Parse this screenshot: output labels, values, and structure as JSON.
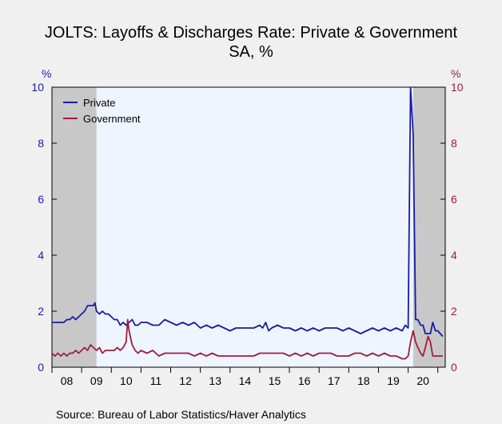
{
  "chart_data": {
    "type": "line",
    "title": "JOLTS: Layoffs & Discharges Rate: Private & Government",
    "subtitle": "SA, %",
    "y_unit_left": "%",
    "y_unit_right": "%",
    "ylim": [
      0,
      10
    ],
    "yticks": [
      "0",
      "2",
      "4",
      "6",
      "8",
      "10"
    ],
    "xlim": [
      2008.0,
      2021.25
    ],
    "xtick_labels": [
      "08",
      "09",
      "10",
      "11",
      "12",
      "13",
      "14",
      "15",
      "16",
      "17",
      "18",
      "19",
      "20"
    ],
    "recessions": [
      [
        2008.0,
        2009.5
      ],
      [
        2020.17,
        2021.25
      ]
    ],
    "legend": "top-left",
    "source": "Source:  Bureau of Labor Statistics/Haver Analytics",
    "colors": {
      "private": "#1a1aa6",
      "government": "#a01c3c",
      "recession": "#c8c8c8",
      "plot_bg": "#eef5ff"
    },
    "series": [
      {
        "name": "Private",
        "axis": "left",
        "points": [
          [
            2008.0,
            1.6
          ],
          [
            2008.1,
            1.6
          ],
          [
            2008.2,
            1.6
          ],
          [
            2008.3,
            1.6
          ],
          [
            2008.4,
            1.6
          ],
          [
            2008.5,
            1.7
          ],
          [
            2008.6,
            1.7
          ],
          [
            2008.7,
            1.8
          ],
          [
            2008.8,
            1.7
          ],
          [
            2008.9,
            1.8
          ],
          [
            2009.0,
            1.9
          ],
          [
            2009.1,
            2.0
          ],
          [
            2009.2,
            2.2
          ],
          [
            2009.3,
            2.2
          ],
          [
            2009.4,
            2.2
          ],
          [
            2009.45,
            2.3
          ],
          [
            2009.5,
            2.0
          ],
          [
            2009.6,
            1.9
          ],
          [
            2009.7,
            2.0
          ],
          [
            2009.8,
            1.9
          ],
          [
            2009.9,
            1.9
          ],
          [
            2010.0,
            1.8
          ],
          [
            2010.1,
            1.7
          ],
          [
            2010.2,
            1.7
          ],
          [
            2010.3,
            1.5
          ],
          [
            2010.4,
            1.6
          ],
          [
            2010.5,
            1.5
          ],
          [
            2010.6,
            1.6
          ],
          [
            2010.7,
            1.7
          ],
          [
            2010.8,
            1.5
          ],
          [
            2010.9,
            1.5
          ],
          [
            2011.0,
            1.6
          ],
          [
            2011.2,
            1.6
          ],
          [
            2011.4,
            1.5
          ],
          [
            2011.6,
            1.5
          ],
          [
            2011.8,
            1.7
          ],
          [
            2012.0,
            1.6
          ],
          [
            2012.2,
            1.5
          ],
          [
            2012.4,
            1.6
          ],
          [
            2012.6,
            1.5
          ],
          [
            2012.8,
            1.6
          ],
          [
            2013.0,
            1.4
          ],
          [
            2013.2,
            1.5
          ],
          [
            2013.4,
            1.4
          ],
          [
            2013.6,
            1.5
          ],
          [
            2013.8,
            1.4
          ],
          [
            2014.0,
            1.3
          ],
          [
            2014.2,
            1.4
          ],
          [
            2014.4,
            1.4
          ],
          [
            2014.6,
            1.4
          ],
          [
            2014.8,
            1.4
          ],
          [
            2015.0,
            1.5
          ],
          [
            2015.1,
            1.4
          ],
          [
            2015.2,
            1.6
          ],
          [
            2015.3,
            1.3
          ],
          [
            2015.4,
            1.4
          ],
          [
            2015.6,
            1.5
          ],
          [
            2015.8,
            1.4
          ],
          [
            2016.0,
            1.4
          ],
          [
            2016.2,
            1.3
          ],
          [
            2016.4,
            1.4
          ],
          [
            2016.6,
            1.3
          ],
          [
            2016.8,
            1.4
          ],
          [
            2017.0,
            1.3
          ],
          [
            2017.2,
            1.4
          ],
          [
            2017.4,
            1.4
          ],
          [
            2017.6,
            1.4
          ],
          [
            2017.8,
            1.3
          ],
          [
            2018.0,
            1.4
          ],
          [
            2018.2,
            1.3
          ],
          [
            2018.4,
            1.2
          ],
          [
            2018.6,
            1.3
          ],
          [
            2018.8,
            1.4
          ],
          [
            2019.0,
            1.3
          ],
          [
            2019.2,
            1.4
          ],
          [
            2019.4,
            1.3
          ],
          [
            2019.6,
            1.4
          ],
          [
            2019.8,
            1.3
          ],
          [
            2019.9,
            1.5
          ],
          [
            2020.0,
            1.4
          ],
          [
            2020.08,
            10.0
          ],
          [
            2020.17,
            8.3
          ],
          [
            2020.25,
            1.7
          ],
          [
            2020.33,
            1.7
          ],
          [
            2020.42,
            1.5
          ],
          [
            2020.5,
            1.5
          ],
          [
            2020.58,
            1.2
          ],
          [
            2020.67,
            1.2
          ],
          [
            2020.75,
            1.2
          ],
          [
            2020.83,
            1.6
          ],
          [
            2020.92,
            1.3
          ],
          [
            2021.0,
            1.3
          ],
          [
            2021.08,
            1.2
          ],
          [
            2021.17,
            1.1
          ]
        ]
      },
      {
        "name": "Government",
        "axis": "right",
        "points": [
          [
            2008.0,
            0.5
          ],
          [
            2008.1,
            0.4
          ],
          [
            2008.2,
            0.5
          ],
          [
            2008.3,
            0.4
          ],
          [
            2008.4,
            0.5
          ],
          [
            2008.5,
            0.4
          ],
          [
            2008.6,
            0.5
          ],
          [
            2008.7,
            0.5
          ],
          [
            2008.8,
            0.6
          ],
          [
            2008.9,
            0.5
          ],
          [
            2009.0,
            0.6
          ],
          [
            2009.1,
            0.7
          ],
          [
            2009.2,
            0.6
          ],
          [
            2009.3,
            0.8
          ],
          [
            2009.4,
            0.7
          ],
          [
            2009.5,
            0.6
          ],
          [
            2009.6,
            0.7
          ],
          [
            2009.7,
            0.5
          ],
          [
            2009.8,
            0.6
          ],
          [
            2009.9,
            0.6
          ],
          [
            2010.0,
            0.6
          ],
          [
            2010.1,
            0.6
          ],
          [
            2010.2,
            0.7
          ],
          [
            2010.3,
            0.6
          ],
          [
            2010.4,
            0.7
          ],
          [
            2010.5,
            0.9
          ],
          [
            2010.55,
            1.7
          ],
          [
            2010.6,
            1.3
          ],
          [
            2010.7,
            0.8
          ],
          [
            2010.8,
            0.6
          ],
          [
            2010.9,
            0.5
          ],
          [
            2011.0,
            0.6
          ],
          [
            2011.2,
            0.5
          ],
          [
            2011.4,
            0.6
          ],
          [
            2011.6,
            0.4
          ],
          [
            2011.8,
            0.5
          ],
          [
            2012.0,
            0.5
          ],
          [
            2012.2,
            0.5
          ],
          [
            2012.4,
            0.5
          ],
          [
            2012.6,
            0.5
          ],
          [
            2012.8,
            0.4
          ],
          [
            2013.0,
            0.5
          ],
          [
            2013.2,
            0.4
          ],
          [
            2013.4,
            0.5
          ],
          [
            2013.6,
            0.4
          ],
          [
            2013.8,
            0.4
          ],
          [
            2014.0,
            0.4
          ],
          [
            2014.2,
            0.4
          ],
          [
            2014.4,
            0.4
          ],
          [
            2014.6,
            0.4
          ],
          [
            2014.8,
            0.4
          ],
          [
            2015.0,
            0.5
          ],
          [
            2015.2,
            0.5
          ],
          [
            2015.4,
            0.5
          ],
          [
            2015.6,
            0.5
          ],
          [
            2015.8,
            0.5
          ],
          [
            2016.0,
            0.4
          ],
          [
            2016.2,
            0.5
          ],
          [
            2016.4,
            0.4
          ],
          [
            2016.6,
            0.5
          ],
          [
            2016.8,
            0.4
          ],
          [
            2017.0,
            0.5
          ],
          [
            2017.2,
            0.5
          ],
          [
            2017.4,
            0.5
          ],
          [
            2017.6,
            0.4
          ],
          [
            2017.8,
            0.4
          ],
          [
            2018.0,
            0.4
          ],
          [
            2018.2,
            0.5
          ],
          [
            2018.4,
            0.5
          ],
          [
            2018.6,
            0.4
          ],
          [
            2018.8,
            0.5
          ],
          [
            2019.0,
            0.4
          ],
          [
            2019.2,
            0.5
          ],
          [
            2019.4,
            0.4
          ],
          [
            2019.6,
            0.4
          ],
          [
            2019.8,
            0.3
          ],
          [
            2019.9,
            0.3
          ],
          [
            2020.0,
            0.4
          ],
          [
            2020.08,
            0.9
          ],
          [
            2020.17,
            1.3
          ],
          [
            2020.25,
            0.9
          ],
          [
            2020.33,
            0.7
          ],
          [
            2020.42,
            0.5
          ],
          [
            2020.5,
            0.4
          ],
          [
            2020.58,
            0.7
          ],
          [
            2020.67,
            1.1
          ],
          [
            2020.75,
            0.9
          ],
          [
            2020.83,
            0.4
          ],
          [
            2020.92,
            0.4
          ],
          [
            2021.0,
            0.4
          ],
          [
            2021.08,
            0.4
          ],
          [
            2021.17,
            0.4
          ]
        ]
      }
    ]
  }
}
